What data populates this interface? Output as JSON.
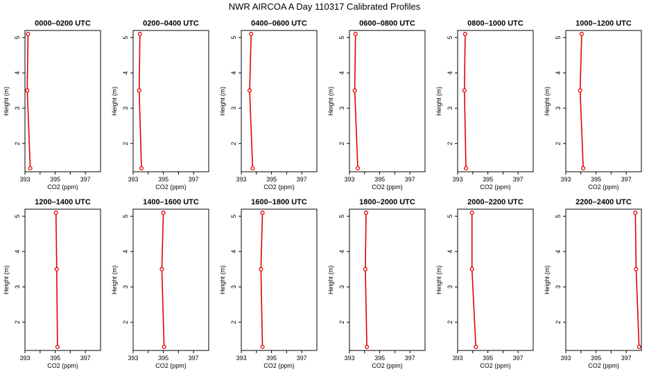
{
  "figure": {
    "title": "NWR AIRCOA A  Day 110317  Calibrated Profiles"
  },
  "colors": {
    "series": "#e00000",
    "axis": "#000000",
    "background": "#ffffff"
  },
  "chart_data": [
    {
      "type": "line",
      "title": "0000–0200 UTC",
      "xlabel": "CO2 (ppm)",
      "ylabel": "Height (m)",
      "xlim": [
        393,
        398
      ],
      "ylim": [
        1.2,
        5.2
      ],
      "xticks": [
        393,
        394,
        395,
        396,
        397
      ],
      "xtick_labels": [
        "393",
        "",
        "395",
        "",
        "397"
      ],
      "yticks": [
        2,
        3,
        4,
        5
      ],
      "x": [
        393.35,
        393.15,
        393.2
      ],
      "y": [
        1.3,
        3.5,
        5.1
      ]
    },
    {
      "type": "line",
      "title": "0200–0400 UTC",
      "xlabel": "CO2 (ppm)",
      "ylabel": "Height (m)",
      "xlim": [
        393,
        398
      ],
      "ylim": [
        1.2,
        5.2
      ],
      "xticks": [
        393,
        394,
        395,
        396,
        397
      ],
      "xtick_labels": [
        "393",
        "",
        "395",
        "",
        "397"
      ],
      "yticks": [
        2,
        3,
        4,
        5
      ],
      "x": [
        393.55,
        393.4,
        393.45
      ],
      "y": [
        1.3,
        3.5,
        5.1
      ]
    },
    {
      "type": "line",
      "title": "0400–0600 UTC",
      "xlabel": "CO2 (ppm)",
      "ylabel": "Height (m)",
      "xlim": [
        393,
        398
      ],
      "ylim": [
        1.2,
        5.2
      ],
      "xticks": [
        393,
        394,
        395,
        396,
        397
      ],
      "xtick_labels": [
        "393",
        "",
        "395",
        "",
        "397"
      ],
      "yticks": [
        2,
        3,
        4,
        5
      ],
      "x": [
        393.75,
        393.55,
        393.65
      ],
      "y": [
        1.3,
        3.5,
        5.1
      ]
    },
    {
      "type": "line",
      "title": "0600–0800 UTC",
      "xlabel": "CO2 (ppm)",
      "ylabel": "Height (m)",
      "xlim": [
        393,
        398
      ],
      "ylim": [
        1.2,
        5.2
      ],
      "xticks": [
        393,
        394,
        395,
        396,
        397
      ],
      "xtick_labels": [
        "393",
        "",
        "395",
        "",
        "397"
      ],
      "yticks": [
        2,
        3,
        4,
        5
      ],
      "x": [
        393.55,
        393.35,
        393.4
      ],
      "y": [
        1.3,
        3.5,
        5.1
      ]
    },
    {
      "type": "line",
      "title": "0800–1000 UTC",
      "xlabel": "CO2 (ppm)",
      "ylabel": "Height (m)",
      "xlim": [
        393,
        398
      ],
      "ylim": [
        1.2,
        5.2
      ],
      "xticks": [
        393,
        394,
        395,
        396,
        397
      ],
      "xtick_labels": [
        "393",
        "",
        "395",
        "",
        "397"
      ],
      "yticks": [
        2,
        3,
        4,
        5
      ],
      "x": [
        393.55,
        393.45,
        393.5
      ],
      "y": [
        1.3,
        3.5,
        5.1
      ]
    },
    {
      "type": "line",
      "title": "1000–1200 UTC",
      "xlabel": "CO2 (ppm)",
      "ylabel": "Height (m)",
      "xlim": [
        393,
        398
      ],
      "ylim": [
        1.2,
        5.2
      ],
      "xticks": [
        393,
        394,
        395,
        396,
        397
      ],
      "xtick_labels": [
        "393",
        "",
        "395",
        "",
        "397"
      ],
      "yticks": [
        2,
        3,
        4,
        5
      ],
      "x": [
        394.15,
        393.95,
        394.05
      ],
      "y": [
        1.3,
        3.5,
        5.1
      ]
    },
    {
      "type": "line",
      "title": "1200–1400 UTC",
      "xlabel": "CO2 (ppm)",
      "ylabel": "Height (m)",
      "xlim": [
        393,
        398
      ],
      "ylim": [
        1.2,
        5.2
      ],
      "xticks": [
        393,
        394,
        395,
        396,
        397
      ],
      "xtick_labels": [
        "393",
        "",
        "395",
        "",
        "397"
      ],
      "yticks": [
        2,
        3,
        4,
        5
      ],
      "x": [
        395.15,
        395.1,
        395.05
      ],
      "y": [
        1.3,
        3.5,
        5.1
      ]
    },
    {
      "type": "line",
      "title": "1400–1600 UTC",
      "xlabel": "CO2 (ppm)",
      "ylabel": "Height (m)",
      "xlim": [
        393,
        398
      ],
      "ylim": [
        1.2,
        5.2
      ],
      "xticks": [
        393,
        394,
        395,
        396,
        397
      ],
      "xtick_labels": [
        "393",
        "",
        "395",
        "",
        "397"
      ],
      "yticks": [
        2,
        3,
        4,
        5
      ],
      "x": [
        395.05,
        394.9,
        395.0
      ],
      "y": [
        1.3,
        3.5,
        5.1
      ]
    },
    {
      "type": "line",
      "title": "1600–1800 UTC",
      "xlabel": "CO2 (ppm)",
      "ylabel": "Height (m)",
      "xlim": [
        393,
        398
      ],
      "ylim": [
        1.2,
        5.2
      ],
      "xticks": [
        393,
        394,
        395,
        396,
        397
      ],
      "xtick_labels": [
        "393",
        "",
        "395",
        "",
        "397"
      ],
      "yticks": [
        2,
        3,
        4,
        5
      ],
      "x": [
        394.4,
        394.3,
        394.4
      ],
      "y": [
        1.3,
        3.5,
        5.1
      ]
    },
    {
      "type": "line",
      "title": "1800–2000 UTC",
      "xlabel": "CO2 (ppm)",
      "ylabel": "Height (m)",
      "xlim": [
        393,
        398
      ],
      "ylim": [
        1.2,
        5.2
      ],
      "xticks": [
        393,
        394,
        395,
        396,
        397
      ],
      "xtick_labels": [
        "393",
        "",
        "395",
        "",
        "397"
      ],
      "yticks": [
        2,
        3,
        4,
        5
      ],
      "x": [
        394.15,
        394.05,
        394.1
      ],
      "y": [
        1.3,
        3.5,
        5.1
      ]
    },
    {
      "type": "line",
      "title": "2000–2200 UTC",
      "xlabel": "CO2 (ppm)",
      "ylabel": "Height (m)",
      "xlim": [
        393,
        398
      ],
      "ylim": [
        1.2,
        5.2
      ],
      "xticks": [
        393,
        394,
        395,
        396,
        397
      ],
      "xtick_labels": [
        "393",
        "",
        "395",
        "",
        "397"
      ],
      "yticks": [
        2,
        3,
        4,
        5
      ],
      "x": [
        394.2,
        393.95,
        393.95
      ],
      "y": [
        1.3,
        3.5,
        5.1
      ]
    },
    {
      "type": "line",
      "title": "2200–2400 UTC",
      "xlabel": "CO2 (ppm)",
      "ylabel": "Height (m)",
      "xlim": [
        393,
        398
      ],
      "ylim": [
        1.2,
        5.2
      ],
      "xticks": [
        393,
        394,
        395,
        396,
        397
      ],
      "xtick_labels": [
        "393",
        "",
        "395",
        "",
        "397"
      ],
      "yticks": [
        2,
        3,
        4,
        5
      ],
      "x": [
        397.85,
        397.65,
        397.6
      ],
      "y": [
        1.3,
        3.5,
        5.1
      ]
    }
  ]
}
